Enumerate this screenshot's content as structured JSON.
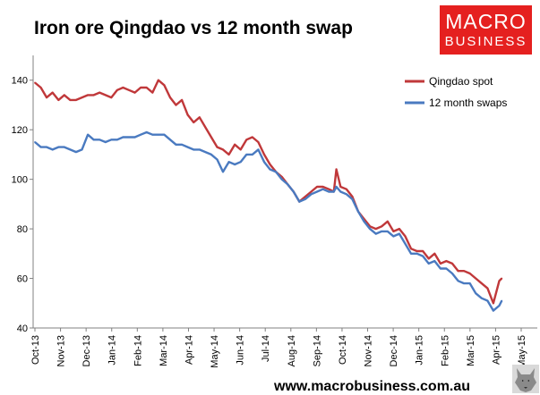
{
  "chart_data": {
    "type": "line",
    "title": "Iron ore Qingdao vs 12 month swap",
    "xlabel": "",
    "ylabel": "",
    "ylim": [
      40,
      150
    ],
    "yticks": [
      "40",
      "60",
      "80",
      "100",
      "120",
      "140"
    ],
    "xticks": [
      "Oct-13",
      "Nov-13",
      "Dec-13",
      "Jan-14",
      "Feb-14",
      "Mar-14",
      "Apr-14",
      "May-14",
      "Jun-14",
      "Jul-14",
      "Aug-14",
      "Sep-14",
      "Oct-14",
      "Nov-14",
      "Dec-14",
      "Jan-15",
      "Feb-15",
      "Mar-15",
      "Apr-15",
      "May-15"
    ],
    "grid": false,
    "legend": "top-right",
    "series": [
      {
        "name": "Qingdao spot",
        "color": "#c0383a",
        "x": [
          "2013-10-01",
          "2013-10-08",
          "2013-10-15",
          "2013-10-22",
          "2013-10-29",
          "2013-11-05",
          "2013-11-12",
          "2013-11-19",
          "2013-11-26",
          "2013-12-03",
          "2013-12-10",
          "2013-12-17",
          "2013-12-24",
          "2013-12-31",
          "2014-01-07",
          "2014-01-14",
          "2014-01-21",
          "2014-01-28",
          "2014-02-04",
          "2014-02-11",
          "2014-02-18",
          "2014-02-25",
          "2014-03-04",
          "2014-03-11",
          "2014-03-18",
          "2014-03-25",
          "2014-04-01",
          "2014-04-08",
          "2014-04-15",
          "2014-04-22",
          "2014-04-29",
          "2014-05-06",
          "2014-05-13",
          "2014-05-20",
          "2014-05-27",
          "2014-06-03",
          "2014-06-10",
          "2014-06-17",
          "2014-06-24",
          "2014-07-01",
          "2014-07-08",
          "2014-07-15",
          "2014-07-22",
          "2014-07-29",
          "2014-08-05",
          "2014-08-12",
          "2014-08-19",
          "2014-08-26",
          "2014-09-02",
          "2014-09-09",
          "2014-09-16",
          "2014-09-22",
          "2014-09-25",
          "2014-09-30",
          "2014-10-07",
          "2014-10-14",
          "2014-10-21",
          "2014-10-28",
          "2014-11-04",
          "2014-11-11",
          "2014-11-18",
          "2014-11-25",
          "2014-12-02",
          "2014-12-09",
          "2014-12-16",
          "2014-12-23",
          "2014-12-30",
          "2015-01-06",
          "2015-01-13",
          "2015-01-20",
          "2015-01-27",
          "2015-02-03",
          "2015-02-10",
          "2015-02-17",
          "2015-02-24",
          "2015-03-03",
          "2015-03-10",
          "2015-03-17",
          "2015-03-24",
          "2015-03-31",
          "2015-04-07",
          "2015-04-10"
        ],
        "y": [
          139,
          137,
          133,
          135,
          132,
          134,
          132,
          132,
          133,
          134,
          134,
          135,
          134,
          133,
          136,
          137,
          136,
          135,
          137,
          137,
          135,
          140,
          138,
          133,
          130,
          132,
          126,
          123,
          125,
          121,
          117,
          113,
          112,
          110,
          114,
          112,
          116,
          117,
          115,
          110,
          106,
          103,
          101,
          98,
          95,
          91,
          93,
          95,
          97,
          97,
          96,
          95,
          104,
          97,
          96,
          93,
          87,
          84,
          81,
          80,
          81,
          83,
          79,
          80,
          77,
          72,
          71,
          71,
          68,
          70,
          66,
          67,
          66,
          63,
          63,
          62,
          60,
          58,
          56,
          50,
          59,
          60
        ]
      },
      {
        "name": "12 month swaps",
        "color": "#4a7ac0",
        "x": [
          "2013-10-01",
          "2013-10-08",
          "2013-10-15",
          "2013-10-22",
          "2013-10-29",
          "2013-11-05",
          "2013-11-12",
          "2013-11-19",
          "2013-11-26",
          "2013-12-03",
          "2013-12-10",
          "2013-12-17",
          "2013-12-24",
          "2013-12-31",
          "2014-01-07",
          "2014-01-14",
          "2014-01-21",
          "2014-01-28",
          "2014-02-04",
          "2014-02-11",
          "2014-02-18",
          "2014-02-25",
          "2014-03-04",
          "2014-03-11",
          "2014-03-18",
          "2014-03-25",
          "2014-04-01",
          "2014-04-08",
          "2014-04-15",
          "2014-04-22",
          "2014-04-29",
          "2014-05-06",
          "2014-05-13",
          "2014-05-20",
          "2014-05-27",
          "2014-06-03",
          "2014-06-10",
          "2014-06-17",
          "2014-06-24",
          "2014-07-01",
          "2014-07-08",
          "2014-07-15",
          "2014-07-22",
          "2014-07-29",
          "2014-08-05",
          "2014-08-12",
          "2014-08-19",
          "2014-08-26",
          "2014-09-02",
          "2014-09-09",
          "2014-09-16",
          "2014-09-22",
          "2014-09-25",
          "2014-09-30",
          "2014-10-07",
          "2014-10-14",
          "2014-10-21",
          "2014-10-28",
          "2014-11-04",
          "2014-11-11",
          "2014-11-18",
          "2014-11-25",
          "2014-12-02",
          "2014-12-09",
          "2014-12-16",
          "2014-12-23",
          "2014-12-30",
          "2015-01-06",
          "2015-01-13",
          "2015-01-20",
          "2015-01-27",
          "2015-02-03",
          "2015-02-10",
          "2015-02-17",
          "2015-02-24",
          "2015-03-03",
          "2015-03-10",
          "2015-03-17",
          "2015-03-24",
          "2015-03-31",
          "2015-04-07",
          "2015-04-10"
        ],
        "y": [
          115,
          113,
          113,
          112,
          113,
          113,
          112,
          111,
          112,
          118,
          116,
          116,
          115,
          116,
          116,
          117,
          117,
          117,
          118,
          119,
          118,
          118,
          118,
          116,
          114,
          114,
          113,
          112,
          112,
          111,
          110,
          108,
          103,
          107,
          106,
          107,
          110,
          110,
          112,
          107,
          104,
          103,
          100,
          98,
          95,
          91,
          92,
          94,
          95,
          96,
          95,
          95,
          97,
          95,
          94,
          92,
          87,
          83,
          80,
          78,
          79,
          79,
          77,
          78,
          74,
          70,
          70,
          69,
          66,
          67,
          64,
          64,
          62,
          59,
          58,
          58,
          54,
          52,
          51,
          47,
          49,
          51
        ]
      }
    ]
  },
  "footer": {
    "url": "www.macrobusiness.com.au"
  },
  "logo": {
    "line1": "MACRO",
    "line2": "BUSINESS"
  },
  "icons": {
    "footer_icon": "wolf-icon"
  }
}
